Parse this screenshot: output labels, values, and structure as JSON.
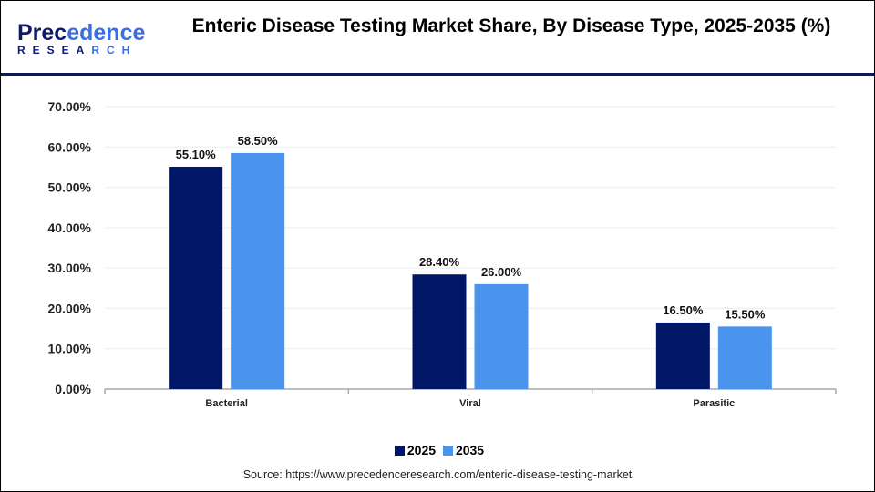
{
  "logo": {
    "text_top": "Precedence",
    "text_bottom": "RESEARCH"
  },
  "title": "Enteric Disease Testing Market Share, By Disease Type, 2025-2035 (%)",
  "chart_data": {
    "type": "bar",
    "title": "Enteric Disease Testing Market Share, By Disease Type, 2025-2035 (%)",
    "categories": [
      "Bacterial",
      "Viral",
      "Parasitic"
    ],
    "series": [
      {
        "name": "2025",
        "color": "#001666",
        "values": [
          55.1,
          28.4,
          16.5
        ],
        "labels": [
          "55.10%",
          "28.40%",
          "16.50%"
        ]
      },
      {
        "name": "2035",
        "color": "#4a94ed",
        "values": [
          58.5,
          26.0,
          15.5
        ],
        "labels": [
          "58.50%",
          "26.00%",
          "15.50%"
        ]
      }
    ],
    "yticks": [
      "0.00%",
      "10.00%",
      "20.00%",
      "30.00%",
      "40.00%",
      "50.00%",
      "60.00%",
      "70.00%"
    ],
    "ylim": [
      0,
      70
    ],
    "grid": true,
    "legend": "bottom"
  },
  "source": "Source: https://www.precedenceresearch.com/enteric-disease-testing-market"
}
